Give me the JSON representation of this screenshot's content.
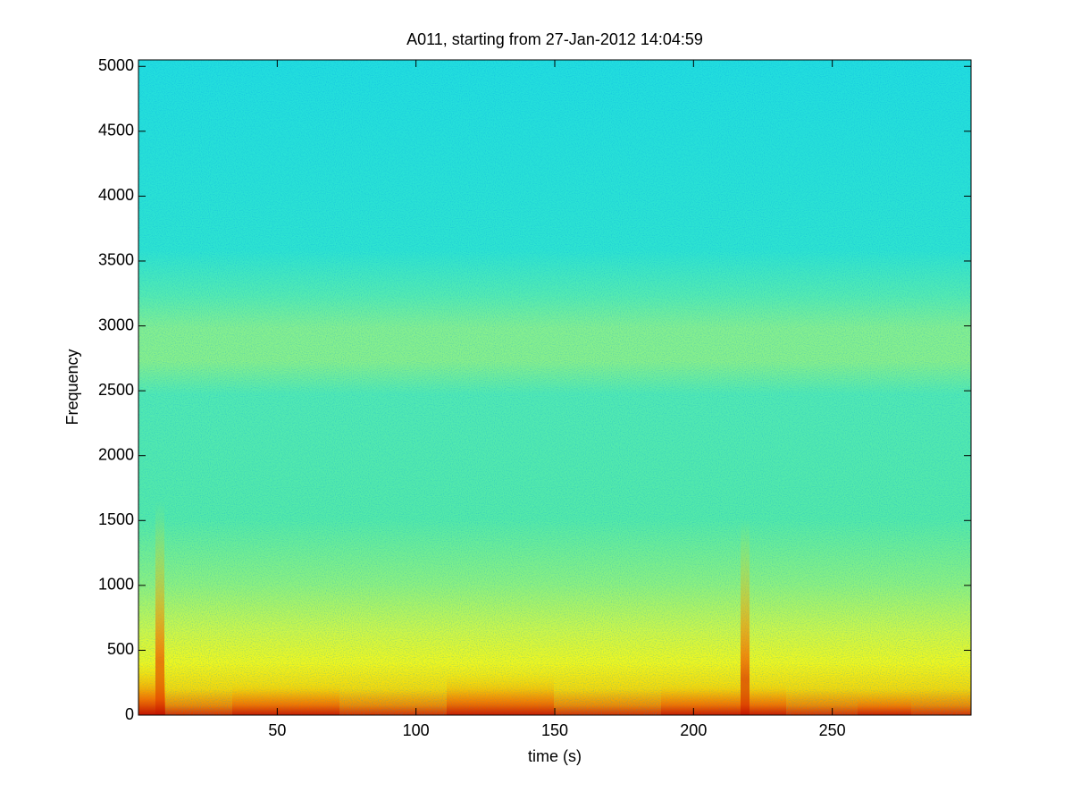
{
  "chart_data": {
    "type": "spectrogram",
    "title": "A011, starting from 27-Jan-2012 14:04:59",
    "x_label": "time (s)",
    "y_label": "Frequency",
    "xlim": [
      0,
      300
    ],
    "xticks": [
      50,
      100,
      150,
      200,
      250
    ],
    "ylim": [
      0,
      5050
    ],
    "yticks": [
      0,
      500,
      1000,
      1500,
      2000,
      2500,
      3000,
      3500,
      4000,
      4500,
      5000
    ]
  }
}
